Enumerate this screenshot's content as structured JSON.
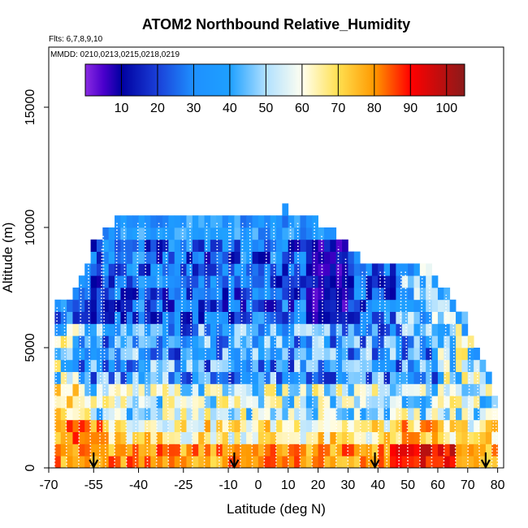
{
  "chart_data": {
    "type": "heatmap",
    "title": "ATOM2 Northbound Relative_Humidity",
    "flights_text": "Flts: 6,7,8,9,10",
    "dates_text": "MMDD: 0210,0213,0215,0218,0219",
    "xlabel": "Latitude (deg N)",
    "ylabel": "Altitude (m)",
    "xlim": [
      -70,
      82
    ],
    "ylim": [
      0,
      17500
    ],
    "x_ticks": [
      -70,
      -55,
      -40,
      -25,
      -10,
      0,
      10,
      20,
      30,
      40,
      50,
      60,
      70,
      80
    ],
    "y_ticks": [
      0,
      5000,
      10000,
      15000
    ],
    "colorbar": {
      "range": [
        0,
        105
      ],
      "ticks": [
        10,
        20,
        30,
        40,
        50,
        60,
        70,
        80,
        90,
        100
      ],
      "stops": [
        {
          "v": 0,
          "c": "#8a2be2"
        },
        {
          "v": 5,
          "c": "#4b00cc"
        },
        {
          "v": 10,
          "c": "#0000a0"
        },
        {
          "v": 20,
          "c": "#1a3fd8"
        },
        {
          "v": 30,
          "c": "#1e90ff"
        },
        {
          "v": 40,
          "c": "#1ea0ff"
        },
        {
          "v": 50,
          "c": "#b0e0ff"
        },
        {
          "v": 60,
          "c": "#fffff0"
        },
        {
          "v": 70,
          "c": "#ffe050"
        },
        {
          "v": 80,
          "c": "#ff9900"
        },
        {
          "v": 90,
          "c": "#ff0000"
        },
        {
          "v": 105,
          "c": "#8b1a1a"
        }
      ]
    },
    "bin_height_m": 500,
    "column_width_deg": 2,
    "column_edges": [
      -68,
      -66,
      -64,
      -62,
      -60,
      -58,
      -56,
      -54,
      -52,
      -50,
      -48,
      -46,
      -44,
      -42,
      -40,
      -38,
      -36,
      -34,
      -32,
      -30,
      -28,
      -26,
      -24,
      -22,
      -20,
      -18,
      -16,
      -14,
      -12,
      -10,
      -8,
      -6,
      -4,
      -2,
      0,
      2,
      4,
      6,
      8,
      10,
      12,
      14,
      16,
      18,
      20,
      22,
      24,
      26,
      28,
      30,
      32,
      34,
      36,
      38,
      40,
      42,
      44,
      46,
      48,
      50,
      52,
      54,
      56,
      58,
      60,
      62,
      64,
      66,
      68,
      70,
      72,
      74,
      76,
      78,
      80
    ],
    "column_tops_m": [
      7000,
      7000,
      7000,
      7500,
      8000,
      8500,
      9500,
      9500,
      10000,
      10000,
      10500,
      10500,
      10500,
      10500,
      10500,
      10500,
      10500,
      10500,
      10500,
      10500,
      10500,
      10500,
      10500,
      10500,
      10500,
      10500,
      10500,
      10500,
      10500,
      10500,
      10500,
      10500,
      10500,
      10500,
      10500,
      10500,
      10500,
      10500,
      11000,
      10500,
      10500,
      10500,
      10500,
      10500,
      10000,
      10000,
      10000,
      9500,
      9500,
      9000,
      9000,
      8500,
      8500,
      8500,
      8500,
      8500,
      8500,
      8500,
      8500,
      8500,
      8500,
      8500,
      8500,
      8000,
      7500,
      7500,
      7000,
      6500,
      6500,
      5500,
      5000,
      4500,
      4000,
      3000
    ],
    "profile_latitudes": [
      -68,
      -64,
      -60,
      -56,
      -53,
      -51,
      -48,
      -44,
      -41,
      -37,
      -34,
      -30,
      -26,
      -22,
      -18,
      -13,
      -10,
      -9,
      -6,
      -2,
      2,
      6,
      10,
      14,
      18,
      22,
      26,
      30,
      34,
      37,
      40,
      43,
      47,
      50,
      54,
      58,
      62,
      66,
      70,
      74,
      78,
      80
    ],
    "dropsonde_latitudes": [
      -55,
      -8,
      39,
      76
    ]
  }
}
